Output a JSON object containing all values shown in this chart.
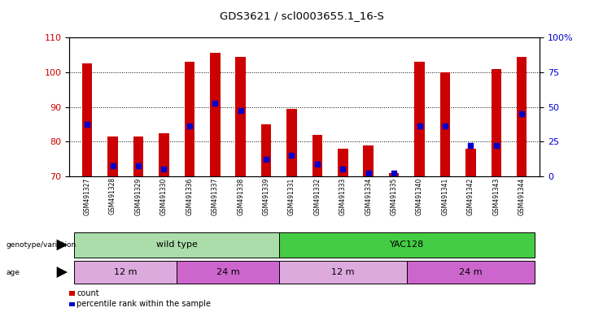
{
  "title": "GDS3621 / scl0003655.1_16-S",
  "samples": [
    "GSM491327",
    "GSM491328",
    "GSM491329",
    "GSM491330",
    "GSM491336",
    "GSM491337",
    "GSM491338",
    "GSM491339",
    "GSM491331",
    "GSM491332",
    "GSM491333",
    "GSM491334",
    "GSM491335",
    "GSM491340",
    "GSM491341",
    "GSM491342",
    "GSM491343",
    "GSM491344"
  ],
  "counts": [
    102.5,
    81.5,
    81.5,
    82.5,
    103,
    105.5,
    104.5,
    85,
    89.5,
    82,
    78,
    79,
    71,
    103,
    100,
    78,
    101,
    104.5
  ],
  "percentiles_left_axis": [
    85,
    73,
    73,
    72,
    84.5,
    91,
    89,
    75,
    76,
    73.5,
    72,
    71,
    71,
    84.5,
    84.5,
    79,
    79,
    88
  ],
  "ylim_left": [
    70,
    110
  ],
  "yticks_left": [
    70,
    80,
    90,
    100,
    110
  ],
  "yticks_right_labels": [
    "0",
    "25",
    "50",
    "75",
    "100%"
  ],
  "yticks_right_positions": [
    70,
    80,
    90,
    100,
    110
  ],
  "bar_color": "#cc0000",
  "dot_color": "#0000cc",
  "genotype_groups": [
    {
      "label": "wild type",
      "start": 0,
      "end": 8,
      "color": "#aaddaa"
    },
    {
      "label": "YAC128",
      "start": 8,
      "end": 18,
      "color": "#44cc44"
    }
  ],
  "age_groups": [
    {
      "label": "12 m",
      "start": 0,
      "end": 4,
      "color": "#ddaadd"
    },
    {
      "label": "24 m",
      "start": 4,
      "end": 8,
      "color": "#cc66cc"
    },
    {
      "label": "12 m",
      "start": 8,
      "end": 13,
      "color": "#ddaadd"
    },
    {
      "label": "24 m",
      "start": 13,
      "end": 18,
      "color": "#cc66cc"
    }
  ],
  "background_color": "#ffffff"
}
